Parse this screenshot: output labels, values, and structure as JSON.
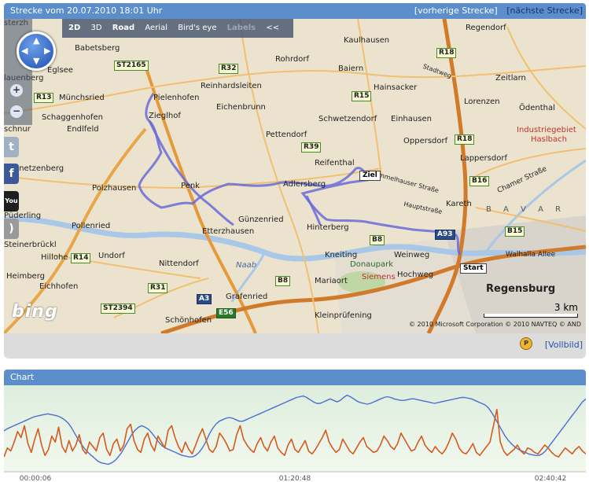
{
  "map_panel": {
    "title": "Strecke vom 20.07.2010 18:01 Uhr",
    "prev_label": "[vorherige Strecke]",
    "next_label": "[nächste Strecke]"
  },
  "toolbar": {
    "view_2d": "2D",
    "view_3d": "3D",
    "road": "Road",
    "aerial": "Aerial",
    "birds_eye": "Bird's eye",
    "labels": "Labels",
    "collapse": "<<"
  },
  "nav": {
    "zoom_in": "+",
    "zoom_out": "−"
  },
  "social": {
    "twitter": "t",
    "facebook": "f",
    "youtube": "You",
    "rss": ")"
  },
  "map_labels": {
    "places": [
      {
        "id": "regendorf",
        "text": "Regendorf"
      },
      {
        "id": "babetsberg",
        "text": "Babetsberg"
      },
      {
        "id": "kaulhausen",
        "text": "Kaulhausen"
      },
      {
        "id": "rohrdorf",
        "text": "Rohrdorf"
      },
      {
        "id": "baiern",
        "text": "Baiern"
      },
      {
        "id": "zeitlarn",
        "text": "Zeitlarn"
      },
      {
        "id": "eglsee",
        "text": "Eglsee"
      },
      {
        "id": "reinhardsleiten",
        "text": "Reinhardsleiten"
      },
      {
        "id": "hainsacker",
        "text": "Hainsacker"
      },
      {
        "id": "muenchsried",
        "text": "Münchsried"
      },
      {
        "id": "pielenhofen",
        "text": "Pielenhofen"
      },
      {
        "id": "lorenzen",
        "text": "Lorenzen"
      },
      {
        "id": "schaggenhofen",
        "text": "Schaggenhofen"
      },
      {
        "id": "zieglhof",
        "text": "Zieglhof"
      },
      {
        "id": "eichenbrunn",
        "text": "Eichenbrunn"
      },
      {
        "id": "odenthal",
        "text": "Ödenthal"
      },
      {
        "id": "endlfeld",
        "text": "Endlfeld"
      },
      {
        "id": "schwetzendorf",
        "text": "Schwetzendorf"
      },
      {
        "id": "einhausen",
        "text": "Einhausen"
      },
      {
        "id": "pettendorf",
        "text": "Pettendorf"
      },
      {
        "id": "oppersdorf",
        "text": "Oppersdorf"
      },
      {
        "id": "industriegebiet",
        "text": "Industriegebiet"
      },
      {
        "id": "haslbach",
        "text": "Haslbach"
      },
      {
        "id": "reifenthal",
        "text": "Reifenthal"
      },
      {
        "id": "lappersdorf",
        "text": "Lappersdorf"
      },
      {
        "id": "steinetzenberg",
        "text": "Steinetzenberg"
      },
      {
        "id": "polzhausen",
        "text": "Polzhausen"
      },
      {
        "id": "penk",
        "text": "Penk"
      },
      {
        "id": "adlersberg",
        "text": "Adlersberg"
      },
      {
        "id": "kareth",
        "text": "Kareth"
      },
      {
        "id": "bavar",
        "text": "B A V A R"
      },
      {
        "id": "puederling",
        "text": "Püderling"
      },
      {
        "id": "pollenried",
        "text": "Pollenried"
      },
      {
        "id": "guenzenried",
        "text": "Günzenried"
      },
      {
        "id": "etterzhausen",
        "text": "Etterzhausen"
      },
      {
        "id": "hinterberg",
        "text": "Hinterberg"
      },
      {
        "id": "steinerbrueckl",
        "text": "Steinerbrückl"
      },
      {
        "id": "undorf",
        "text": "Undorf"
      },
      {
        "id": "knetting",
        "text": "Kneiting"
      },
      {
        "id": "weinweg",
        "text": "Weinweg"
      },
      {
        "id": "hillohe",
        "text": "Hillohe"
      },
      {
        "id": "nittendorf",
        "text": "Nittendorf"
      },
      {
        "id": "donaupark",
        "text": "Donaupark"
      },
      {
        "id": "heimberg",
        "text": "Heimberg"
      },
      {
        "id": "siemens",
        "text": "Siemens"
      },
      {
        "id": "hochweg",
        "text": "Hochweg"
      },
      {
        "id": "eichhofen",
        "text": "Eichhofen"
      },
      {
        "id": "mariaort",
        "text": "Mariaort"
      },
      {
        "id": "regensburg",
        "text": "Regensburg"
      },
      {
        "id": "grafenried",
        "text": "Grafenried"
      },
      {
        "id": "kleinpruefening",
        "text": "Kleinprüfening"
      },
      {
        "id": "schoenhofen",
        "text": "Schönhofen"
      },
      {
        "id": "naab",
        "text": "Naab"
      },
      {
        "id": "schnur",
        "text": "schnur"
      },
      {
        "id": "lauenberg",
        "text": "lauenberg"
      },
      {
        "id": "sterzh",
        "text": "sterzh"
      },
      {
        "id": "wallhalla",
        "text": "Walhalla Allee"
      },
      {
        "id": "chamer",
        "text": "Chamer Straße"
      },
      {
        "id": "hauptstrasse",
        "text": "Hauptstraße"
      },
      {
        "id": "mmelhauser",
        "text": "mmelhauser Straße"
      },
      {
        "id": "stadtweg",
        "text": "Stadtweg"
      }
    ],
    "roads": [
      {
        "id": "r18a",
        "text": "R18"
      },
      {
        "id": "st2165",
        "text": "ST2165"
      },
      {
        "id": "r32",
        "text": "R32"
      },
      {
        "id": "r13",
        "text": "R13"
      },
      {
        "id": "r15",
        "text": "R15"
      },
      {
        "id": "r18b",
        "text": "R18"
      },
      {
        "id": "r39",
        "text": "R39"
      },
      {
        "id": "b16",
        "text": "B16"
      },
      {
        "id": "b15",
        "text": "B15"
      },
      {
        "id": "a93",
        "text": "A93"
      },
      {
        "id": "b8a",
        "text": "B8"
      },
      {
        "id": "r14",
        "text": "R14"
      },
      {
        "id": "b8b",
        "text": "B8"
      },
      {
        "id": "r31",
        "text": "R31"
      },
      {
        "id": "a3",
        "text": "A3"
      },
      {
        "id": "st2394",
        "text": "ST2394"
      },
      {
        "id": "e56",
        "text": "E56"
      }
    ],
    "flags": {
      "finish": "Ziel",
      "start": "Start"
    }
  },
  "map_overlay": {
    "brand": "bing",
    "scale_label": "3 km",
    "copyright": "© 2010 Microsoft Corporation   © 2010 NAVTEQ   © AND"
  },
  "map_footer": {
    "fullscreen_label": "[Vollbild]",
    "parking_label": "P"
  },
  "chart_panel": {
    "title": "Chart"
  },
  "chart_data": {
    "type": "line",
    "title": "",
    "x_ticks": [
      "00:00:06",
      "01:20:48",
      "02:40:42"
    ],
    "series": [
      {
        "name": "",
        "color": "#4a6fd0",
        "values": [
          55,
          58,
          60,
          62,
          64,
          66,
          68,
          70,
          72,
          74,
          75,
          76,
          77,
          78,
          77,
          76,
          75,
          73,
          70,
          66,
          60,
          52,
          44,
          37,
          31,
          26,
          22,
          18,
          14,
          12,
          11,
          10,
          12,
          15,
          20,
          26,
          34,
          42,
          50,
          56,
          60,
          62,
          60,
          57,
          52,
          46,
          40,
          35,
          32,
          30,
          28,
          26,
          24,
          22,
          21,
          20,
          20,
          22,
          26,
          32,
          40,
          50,
          58,
          64,
          68,
          70,
          72,
          73,
          72,
          70,
          68,
          68,
          70,
          72,
          74,
          76,
          78,
          80,
          82,
          84,
          86,
          88,
          90,
          92,
          94,
          96,
          98,
          100,
          101,
          102,
          100,
          97,
          94,
          92,
          92,
          94,
          96,
          98,
          96,
          94,
          96,
          100,
          103,
          101,
          98,
          95,
          93,
          92,
          91,
          92,
          94,
          96,
          98,
          100,
          101,
          100,
          98,
          97,
          96,
          96,
          97,
          98,
          98,
          97,
          96,
          95,
          94,
          93,
          92,
          93,
          94,
          95,
          96,
          97,
          98,
          99,
          100,
          100,
          99,
          98,
          96,
          94,
          92,
          90,
          86,
          80,
          72,
          64,
          56,
          48,
          42,
          37,
          33,
          30,
          28,
          26,
          24,
          23,
          22,
          22,
          24,
          28,
          34,
          40,
          46,
          52,
          58,
          64,
          70,
          76,
          82,
          88,
          94,
          98
        ],
        "style": "smooth"
      },
      {
        "name": "",
        "color": "#d45a1e",
        "values": [
          20,
          32,
          28,
          40,
          54,
          46,
          62,
          38,
          26,
          44,
          58,
          36,
          22,
          30,
          48,
          40,
          60,
          34,
          26,
          42,
          28,
          36,
          50,
          30,
          24,
          40,
          34,
          28,
          46,
          52,
          30,
          22,
          38,
          44,
          28,
          36,
          58,
          64,
          42,
          30,
          26,
          44,
          52,
          36,
          28,
          48,
          40,
          32,
          56,
          62,
          46,
          34,
          26,
          40,
          30,
          24,
          36,
          48,
          58,
          44,
          30,
          26,
          34,
          52,
          46,
          38,
          28,
          30,
          50,
          62,
          44,
          36,
          30,
          26,
          38,
          46,
          34,
          28,
          40,
          48,
          32,
          26,
          22,
          36,
          44,
          30,
          26,
          34,
          42,
          28,
          24,
          30,
          38,
          46,
          56,
          40,
          32,
          26,
          30,
          44,
          36,
          28,
          24,
          32,
          40,
          46,
          34,
          30,
          26,
          28,
          36,
          48,
          42,
          34,
          30,
          38,
          52,
          44,
          36,
          28,
          30,
          40,
          48,
          36,
          30,
          26,
          34,
          28,
          24,
          30,
          40,
          52,
          44,
          32,
          26,
          24,
          30,
          38,
          26,
          22,
          28,
          34,
          40,
          62,
          84,
          40,
          28,
          22,
          26,
          30,
          36,
          28,
          24,
          32,
          30,
          26,
          24,
          30,
          36,
          32,
          26,
          22,
          20,
          26,
          32,
          28,
          24,
          30,
          34,
          28,
          24
        ],
        "style": "jagged"
      }
    ],
    "ylim": [
      0,
      110
    ],
    "grid": false,
    "legend": "none"
  }
}
